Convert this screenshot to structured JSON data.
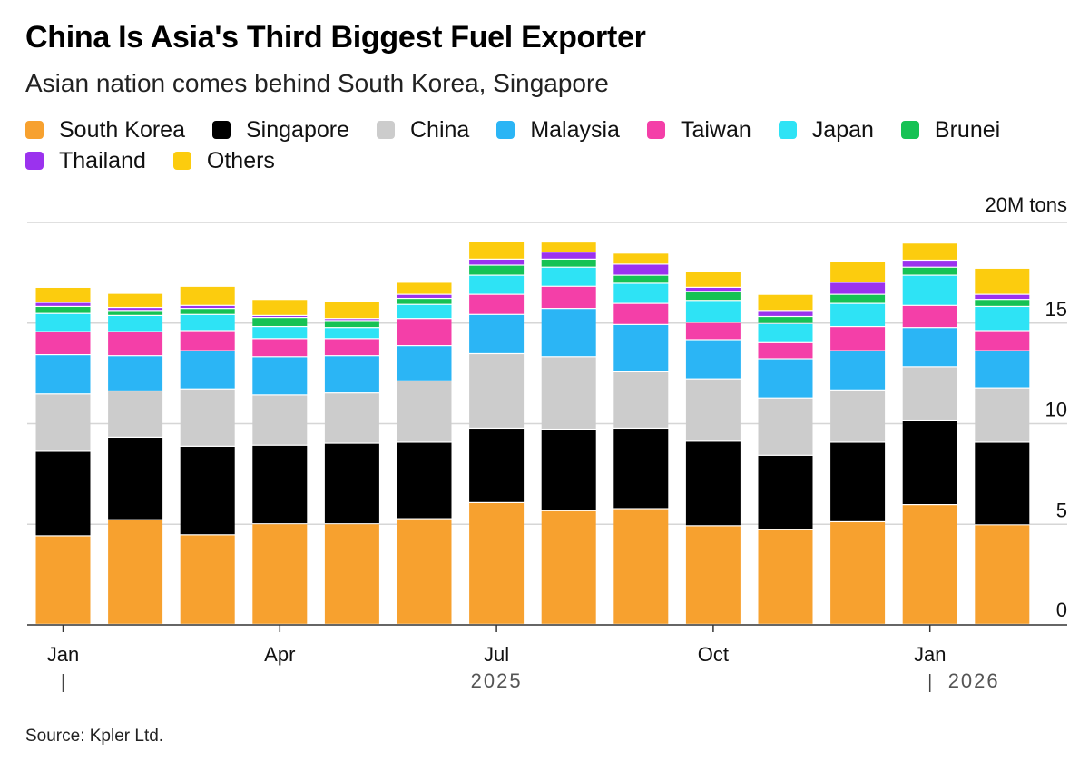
{
  "title": "China Is Asia's Third Biggest Fuel Exporter",
  "subtitle": "Asian nation comes behind South Korea, Singapore",
  "source": "Source: Kpler Ltd.",
  "chart_data": {
    "type": "bar",
    "stacked": true,
    "y_unit_label": "20M tons",
    "ylim": [
      0,
      20
    ],
    "y_ticks": [
      0,
      5,
      10,
      15
    ],
    "grid": true,
    "legend_position": "top",
    "x_tick_labels": [
      "Jan",
      "Apr",
      "Jul",
      "Oct",
      "Jan"
    ],
    "x_tick_index": [
      0,
      3,
      6,
      9,
      12
    ],
    "year_labels": [
      "2025",
      "2026"
    ],
    "categories": [
      "Jan 2025",
      "Feb 2025",
      "Mar 2025",
      "Apr 2025",
      "May 2025",
      "Jun 2025",
      "Jul 2025",
      "Aug 2025",
      "Sep 2025",
      "Oct 2025",
      "Nov 2025",
      "Dec 2025",
      "Jan 2026",
      "Feb 2026"
    ],
    "series": [
      {
        "name": "South Korea",
        "color": "#f7a12f",
        "values": [
          4.4,
          5.2,
          4.45,
          5.0,
          5.0,
          5.25,
          6.05,
          5.65,
          5.75,
          4.9,
          4.7,
          5.1,
          5.95,
          4.95
        ]
      },
      {
        "name": "Singapore",
        "color": "#000000",
        "values": [
          4.2,
          4.1,
          4.4,
          3.9,
          4.0,
          3.8,
          3.7,
          4.05,
          4.0,
          4.2,
          3.7,
          3.95,
          4.2,
          4.1
        ]
      },
      {
        "name": "China",
        "color": "#cccccc",
        "values": [
          2.85,
          2.3,
          2.85,
          2.5,
          2.5,
          3.05,
          3.7,
          3.6,
          2.8,
          3.1,
          2.85,
          2.6,
          2.65,
          2.7
        ]
      },
      {
        "name": "Malaysia",
        "color": "#2bb5f5",
        "values": [
          1.95,
          1.75,
          1.9,
          1.9,
          1.85,
          1.75,
          1.95,
          2.4,
          2.35,
          1.95,
          1.95,
          1.95,
          1.95,
          1.85
        ]
      },
      {
        "name": "Taiwan",
        "color": "#f43fa8",
        "values": [
          1.15,
          1.2,
          1.0,
          0.9,
          0.85,
          1.35,
          1.0,
          1.1,
          1.05,
          0.85,
          0.8,
          1.2,
          1.1,
          1.0
        ]
      },
      {
        "name": "Japan",
        "color": "#2ee3f5",
        "values": [
          0.9,
          0.8,
          0.8,
          0.6,
          0.55,
          0.7,
          0.95,
          0.95,
          1.0,
          1.1,
          0.95,
          1.15,
          1.5,
          1.2
        ]
      },
      {
        "name": "Brunei",
        "color": "#16c254",
        "values": [
          0.35,
          0.25,
          0.3,
          0.45,
          0.35,
          0.3,
          0.5,
          0.4,
          0.4,
          0.45,
          0.35,
          0.45,
          0.4,
          0.35
        ]
      },
      {
        "name": "Thailand",
        "color": "#9b32ee",
        "values": [
          0.2,
          0.15,
          0.15,
          0.1,
          0.1,
          0.2,
          0.3,
          0.35,
          0.55,
          0.2,
          0.3,
          0.6,
          0.35,
          0.25
        ]
      },
      {
        "name": "Others",
        "color": "#fccc0e",
        "values": [
          0.75,
          0.7,
          0.95,
          0.8,
          0.85,
          0.6,
          0.9,
          0.5,
          0.55,
          0.8,
          0.8,
          1.05,
          0.85,
          1.3
        ]
      }
    ]
  }
}
